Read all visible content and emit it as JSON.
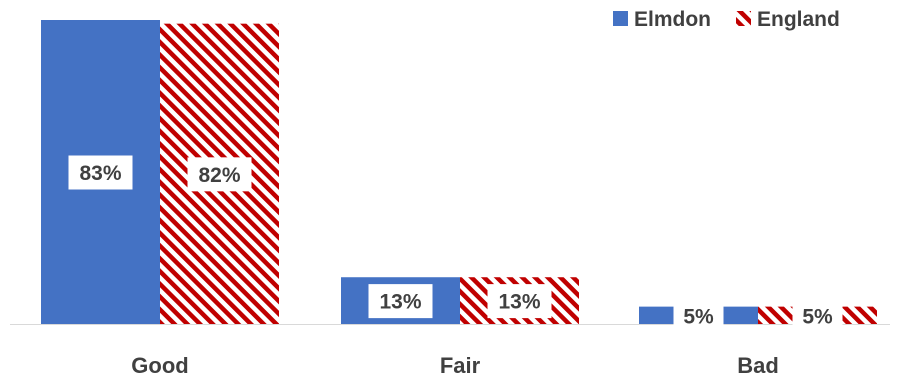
{
  "chart_data": {
    "type": "bar",
    "title": "",
    "xlabel": "",
    "ylabel": "",
    "categories": [
      "Good",
      "Fair",
      "Bad"
    ],
    "series": [
      {
        "name": "Elmdon",
        "values": [
          83,
          13,
          5
        ],
        "labels": [
          "83%",
          "13%",
          "5%"
        ],
        "color": "#4472C4",
        "pattern": "solid"
      },
      {
        "name": "England",
        "values": [
          82,
          13,
          5
        ],
        "labels": [
          "82%",
          "13%",
          "5%"
        ],
        "color": "#C00000",
        "pattern": "diagonal-stripes"
      }
    ],
    "ylim": [
      0,
      83
    ],
    "grid": false,
    "legend": "top-right"
  }
}
